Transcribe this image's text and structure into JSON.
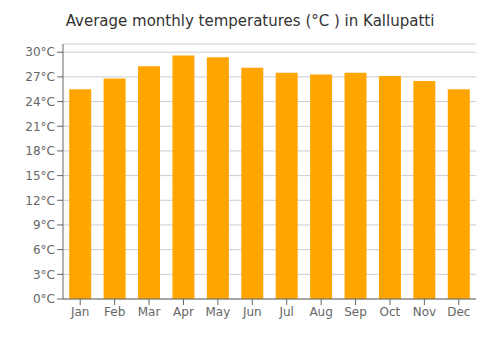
{
  "chart_data": {
    "type": "bar",
    "title": "Average monthly temperatures (°C ) in Kallupatti",
    "categories": [
      "Jan",
      "Feb",
      "Mar",
      "Apr",
      "May",
      "Jun",
      "Jul",
      "Aug",
      "Sep",
      "Oct",
      "Nov",
      "Dec"
    ],
    "values": [
      25.5,
      26.8,
      28.3,
      29.6,
      29.4,
      28.1,
      27.5,
      27.3,
      27.5,
      27.1,
      26.5,
      25.5
    ],
    "color": "#FFA500",
    "ylim": [
      0,
      31
    ],
    "yticks": [
      {
        "value": 0,
        "label": "0°C"
      },
      {
        "value": 3,
        "label": "3°C"
      },
      {
        "value": 6,
        "label": "6°C"
      },
      {
        "value": 9,
        "label": "9°C"
      },
      {
        "value": 12,
        "label": "12°C"
      },
      {
        "value": 15,
        "label": "15°C"
      },
      {
        "value": 18,
        "label": "18°C"
      },
      {
        "value": 21,
        "label": "21°C"
      },
      {
        "value": 24,
        "label": "24°C"
      },
      {
        "value": 27,
        "label": "27°C"
      },
      {
        "value": 30,
        "label": "30°C"
      }
    ],
    "grid": true
  }
}
